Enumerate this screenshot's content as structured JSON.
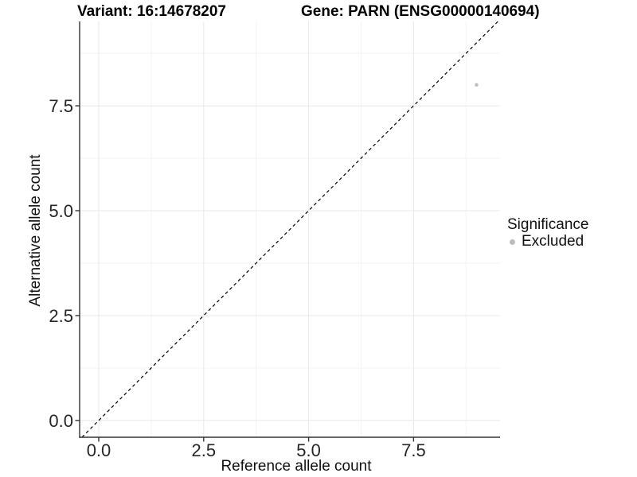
{
  "chart_data": {
    "type": "scatter",
    "title_left": "Variant: 16:14678207",
    "title_right": "Gene: PARN (ENSG00000140694)",
    "xlabel": "Reference allele count",
    "ylabel": "Alternative allele count",
    "x_ticks": {
      "values": [
        0,
        2.5,
        5,
        7.5
      ],
      "labels": [
        "0.0",
        "2.5",
        "5.0",
        "7.5"
      ]
    },
    "y_ticks": {
      "values": [
        0,
        2.5,
        5,
        7.5
      ],
      "labels": [
        "0.0",
        "2.5",
        "5.0",
        "7.5"
      ]
    },
    "xlim": [
      -0.455,
      9.56
    ],
    "ylim": [
      -0.4,
      9.51
    ],
    "grid": {
      "major": true,
      "minor": true
    },
    "points": [
      {
        "x": 9,
        "y": 8,
        "series": "Excluded"
      }
    ],
    "reference_line": {
      "slope": 1,
      "intercept": 0,
      "linetype": "dashed"
    },
    "legend": {
      "position": "right",
      "title": "Significance",
      "items": [
        {
          "label": "Excluded",
          "color": "#bcbcbc",
          "marker": "circle"
        }
      ]
    },
    "colors": {
      "point": "#bcbcbc",
      "grid_major": "#e8e8e8",
      "grid_minor": "#f3f3f3",
      "axis": "#333333",
      "reference_line": "#000000",
      "tick_text": "#262626",
      "title_text": "#000000"
    }
  }
}
